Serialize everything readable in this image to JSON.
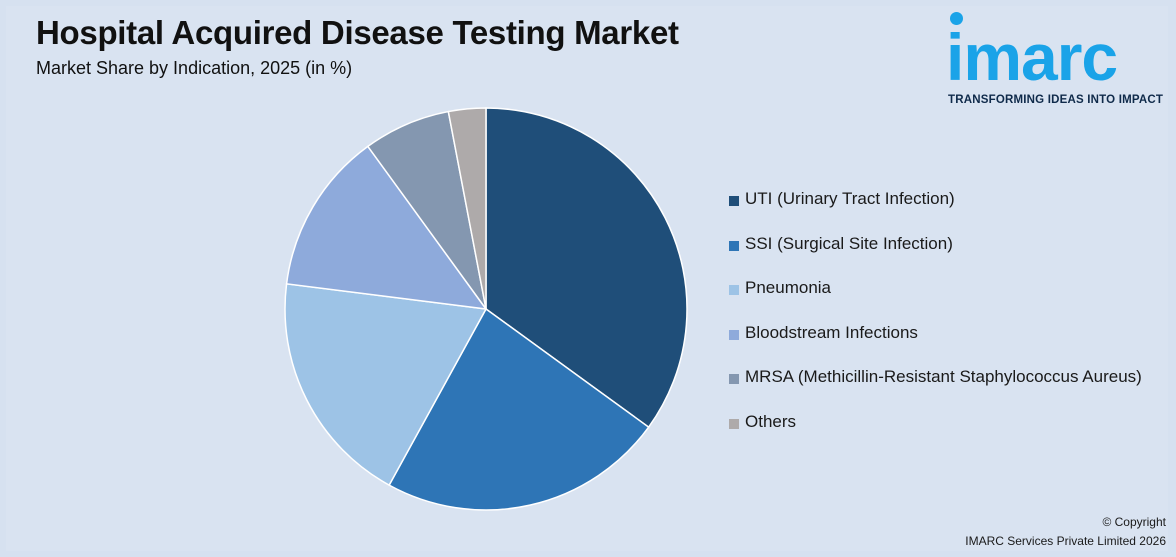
{
  "header": {
    "title": "Hospital Acquired Disease Testing Market",
    "subtitle": "Market Share by Indication, 2025 (in %)"
  },
  "logo": {
    "wordmark": "imarc",
    "tagline": "TRANSFORMING IDEAS INTO IMPACT"
  },
  "chart_data": {
    "type": "pie",
    "title": "Hospital Acquired Disease Testing Market",
    "subtitle": "Market Share by Indication, 2025 (in %)",
    "legend_position": "right",
    "slices": [
      {
        "label": "UTI (Urinary Tract Infection)",
        "value": 35,
        "color": "#1f4e79"
      },
      {
        "label": "SSI (Surgical Site Infection)",
        "value": 23,
        "color": "#2e75b6"
      },
      {
        "label": "Pneumonia",
        "value": 19,
        "color": "#9dc3e6"
      },
      {
        "label": "Bloodstream Infections",
        "value": 13,
        "color": "#8eaadb"
      },
      {
        "label": "MRSA (Methicillin-Resistant Staphylococcus Aureus)",
        "value": 7,
        "color": "#8497b0"
      },
      {
        "label": "Others",
        "value": 3,
        "color": "#aeaaaa"
      }
    ]
  },
  "footer": {
    "copyright_line1": "© Copyright",
    "copyright_line2": "IMARC Services Private Limited 2026"
  }
}
